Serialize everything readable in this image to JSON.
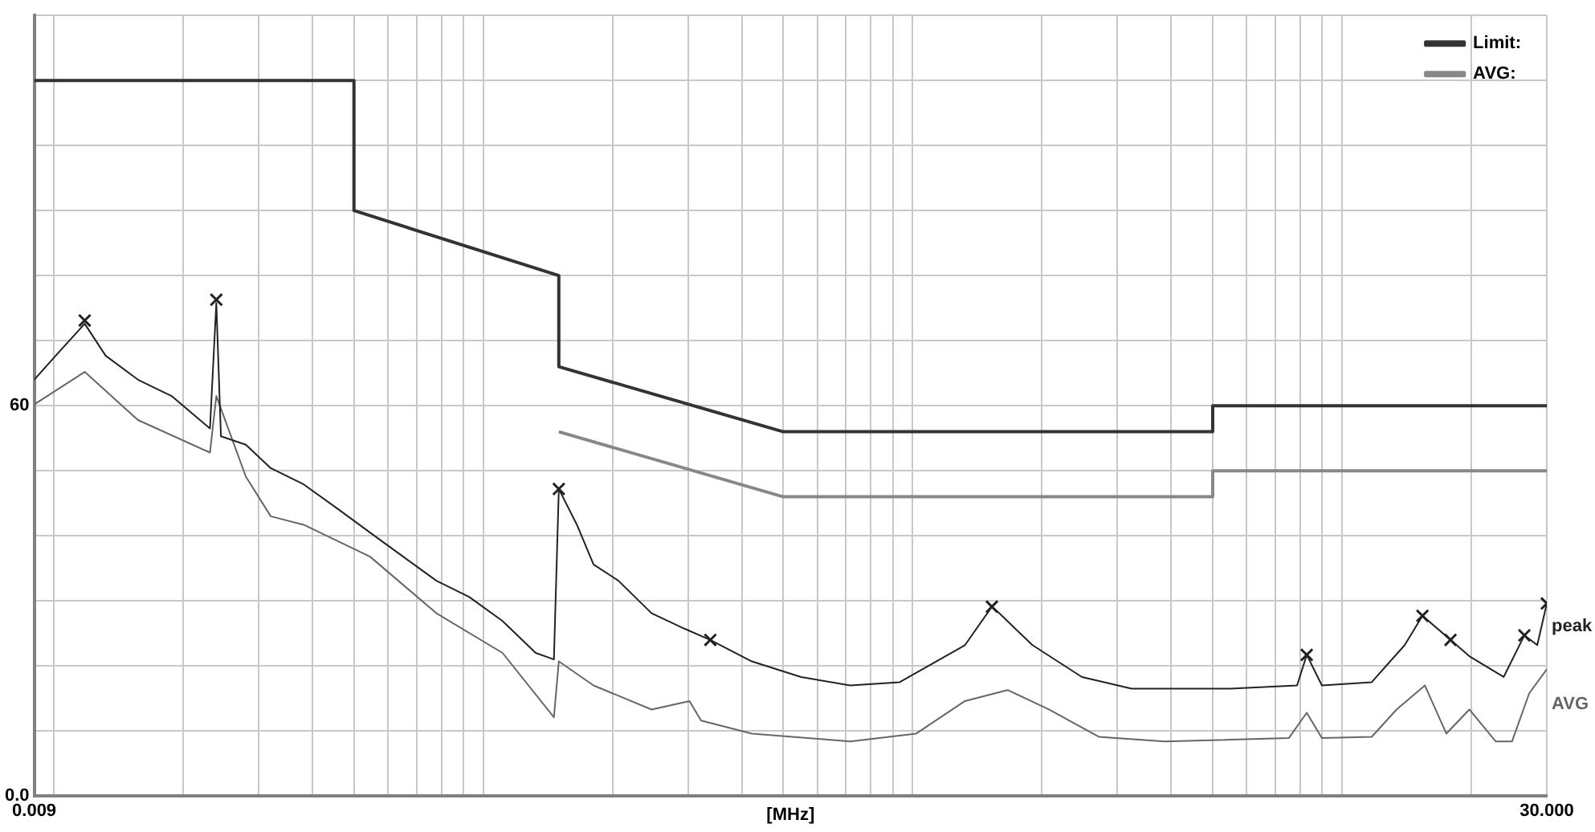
{
  "chart_data": {
    "type": "line",
    "xlabel": "[MHz]",
    "log": "x",
    "grid": true,
    "legend": "top right",
    "line_style": "solid",
    "marker": "none",
    "xlim": [
      0.009,
      30
    ],
    "ylim": [
      0,
      120
    ],
    "xticks": [
      {
        "value": 0.009,
        "label": "0.009"
      },
      {
        "value": 0.01,
        "label": null
      },
      {
        "value": 0.02,
        "label": null
      },
      {
        "value": 0.03,
        "label": null
      },
      {
        "value": 0.04,
        "label": null
      },
      {
        "value": 0.05,
        "label": null
      },
      {
        "value": 0.06,
        "label": null
      },
      {
        "value": 0.07,
        "label": null
      },
      {
        "value": 0.08,
        "label": null
      },
      {
        "value": 0.09,
        "label": null
      },
      {
        "value": 0.1,
        "label": null
      },
      {
        "value": 0.2,
        "label": null
      },
      {
        "value": 0.3,
        "label": null
      },
      {
        "value": 0.4,
        "label": null
      },
      {
        "value": 0.5,
        "label": null
      },
      {
        "value": 0.6,
        "label": null
      },
      {
        "value": 0.7,
        "label": null
      },
      {
        "value": 0.8,
        "label": null
      },
      {
        "value": 0.9,
        "label": null
      },
      {
        "value": 1,
        "label": null
      },
      {
        "value": 2,
        "label": null
      },
      {
        "value": 3,
        "label": null
      },
      {
        "value": 4,
        "label": null
      },
      {
        "value": 5,
        "label": null
      },
      {
        "value": 6,
        "label": null
      },
      {
        "value": 7,
        "label": null
      },
      {
        "value": 8,
        "label": null
      },
      {
        "value": 9,
        "label": null
      },
      {
        "value": 10,
        "label": null
      },
      {
        "value": 20,
        "label": null
      },
      {
        "value": 30,
        "label": "30.000"
      }
    ],
    "yticks": [
      {
        "value": 0,
        "label": "0.0"
      },
      {
        "value": 10,
        "label": null
      },
      {
        "value": 20,
        "label": null
      },
      {
        "value": 30,
        "label": null
      },
      {
        "value": 40,
        "label": null
      },
      {
        "value": 50,
        "label": null
      },
      60,
      {
        "value": 70,
        "label": null
      },
      {
        "value": 80,
        "label": null
      },
      {
        "value": 90,
        "label": null
      },
      {
        "value": 100,
        "label": null
      },
      {
        "value": 110,
        "label": null
      },
      {
        "value": 120,
        "label": null
      }
    ],
    "series": [
      {
        "name": "Limit:",
        "color": "#333333",
        "x": [
          0.009,
          0.05,
          0.05,
          0.15,
          0.15,
          0.5,
          5,
          5,
          30
        ],
        "values": [
          110,
          110,
          90,
          80,
          66,
          56,
          56,
          60,
          60
        ]
      },
      {
        "name": "AVG:",
        "color": "#888888",
        "x": [
          0.15,
          0.5,
          5,
          5,
          30
        ],
        "values": [
          56,
          46,
          46,
          50,
          50
        ]
      },
      {
        "name": "peak",
        "color": "#222222",
        "x": [
          0.009,
          0.0101,
          0.0118,
          0.0132,
          0.0157,
          0.0188,
          0.0231,
          0.0239,
          0.0245,
          0.028,
          0.032,
          0.0382,
          0.0457,
          0.0545,
          0.0651,
          0.0778,
          0.0928,
          0.1109,
          0.1325,
          0.1461,
          0.15,
          0.1653,
          0.1807,
          0.2065,
          0.2467,
          0.2948,
          0.338,
          0.4222,
          0.5496,
          0.7158,
          0.9334,
          1.3245,
          1.53,
          1.5918,
          1.9016,
          2.4795,
          3.2365,
          5.5,
          7.86,
          8.28,
          8.98,
          11.73,
          14.0,
          15.4,
          17.9,
          19.8,
          23.8,
          26.6,
          28.5,
          30
        ],
        "values": [
          64,
          67.7,
          72.6,
          67.7,
          64,
          61.5,
          56.5,
          75.8,
          55.3,
          54,
          50.4,
          47.9,
          44.2,
          40.5,
          36.8,
          33.1,
          30.6,
          26.9,
          22,
          21,
          47.2,
          41.7,
          35.6,
          33.1,
          28.1,
          25.7,
          24,
          20.7,
          18.3,
          17,
          17.5,
          23.2,
          29.1,
          28.1,
          23.2,
          18.3,
          16.5,
          16.5,
          17,
          21.7,
          17,
          17.5,
          23.2,
          27.7,
          24,
          21.5,
          18.3,
          24.7,
          23.2,
          29.6
        ]
      },
      {
        "name": "AVG",
        "color": "#666666",
        "x": [
          0.009,
          0.0118,
          0.0157,
          0.0231,
          0.0239,
          0.028,
          0.032,
          0.0382,
          0.0545,
          0.0778,
          0.1109,
          0.1461,
          0.15,
          0.1807,
          0.2467,
          0.3023,
          0.3217,
          0.4222,
          0.7158,
          1.0201,
          1.3245,
          1.6645,
          2.0773,
          2.7135,
          3.8643,
          7.52,
          8.28,
          8.98,
          11.73,
          13.4,
          15.6,
          17.5,
          19.8,
          22.8,
          24.9,
          27.3,
          30
        ],
        "values": [
          60.2,
          65.2,
          57.8,
          52.8,
          61.5,
          49.1,
          43,
          41.7,
          36.8,
          28.1,
          22,
          12.1,
          20.7,
          17,
          13.3,
          14.6,
          11.6,
          9.6,
          8.4,
          9.6,
          14.6,
          16.3,
          13.3,
          9.1,
          8.4,
          8.9,
          12.8,
          8.9,
          9.1,
          13.3,
          17,
          9.6,
          13.3,
          8.4,
          8.4,
          15.8,
          19.5
        ]
      },
      {
        "type": "scatter",
        "marker": "cross",
        "color": "#222222",
        "x": [
          0.0118,
          0.0239,
          0.15,
          0.338,
          1.53,
          8.28,
          15.4,
          17.9,
          26.6,
          30
        ],
        "values": [
          73.1,
          76.3,
          47.2,
          24,
          29.1,
          21.7,
          27.7,
          24,
          24.7,
          29.6
        ]
      }
    ]
  }
}
